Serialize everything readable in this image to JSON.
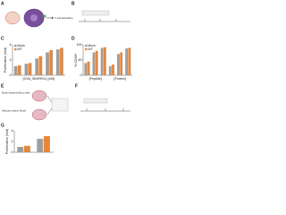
{
  "panel_labels": [
    "A",
    "B",
    "C",
    "D",
    "E",
    "F",
    "G"
  ],
  "diagram_a": {
    "output": "T cell activation"
  },
  "diagram_e": {
    "top": "Mock infected HeLa cells",
    "bottom": "Infection and/or Mock"
  },
  "chart_data": [
    {
      "type": "bar",
      "ylabel": "Proliferation (fold)",
      "xlabel": "[OVA_SIINFEKL] (nM)",
      "categories": [
        null,
        null,
        null,
        null,
        null
      ],
      "series": [
        {
          "name": "Mock",
          "color": "#9e9e9e",
          "values": [
            1.2,
            1.5,
            2.2,
            3.0,
            3.4
          ]
        },
        {
          "name": "WT",
          "color": "#e8873a",
          "values": [
            1.3,
            1.6,
            2.5,
            3.3,
            3.6
          ]
        }
      ],
      "ylim": [
        0,
        4
      ],
      "yticks": [
        0,
        2,
        4
      ],
      "legend": "upper left"
    },
    {
      "type": "bar",
      "ylabel": "% CD69+",
      "x_groups": [
        "[Peptide]",
        "[Protein]"
      ],
      "categories": [
        null,
        null,
        null,
        null,
        null,
        null
      ],
      "series": [
        {
          "name": "Mock",
          "color": "#9e9e9e",
          "values": [
            40,
            75,
            90,
            30,
            70,
            88
          ]
        },
        {
          "name": "WT",
          "color": "#e8873a",
          "values": [
            45,
            80,
            92,
            35,
            75,
            90
          ]
        }
      ],
      "ylim": [
        0,
        100
      ],
      "yticks": [
        0,
        50,
        100
      ],
      "legend": "upper left"
    },
    {
      "type": "bar",
      "ylabel": "Proliferation (fold)",
      "categories": [
        null,
        null
      ],
      "series": [
        {
          "name": "Mock",
          "color": "#9e9e9e",
          "values": [
            1.0,
            2.5
          ]
        },
        {
          "name": "WT",
          "color": "#e8873a",
          "values": [
            1.2,
            3.0
          ]
        }
      ],
      "ylim": [
        0,
        4
      ],
      "yticks": [
        0,
        2,
        4
      ]
    }
  ]
}
